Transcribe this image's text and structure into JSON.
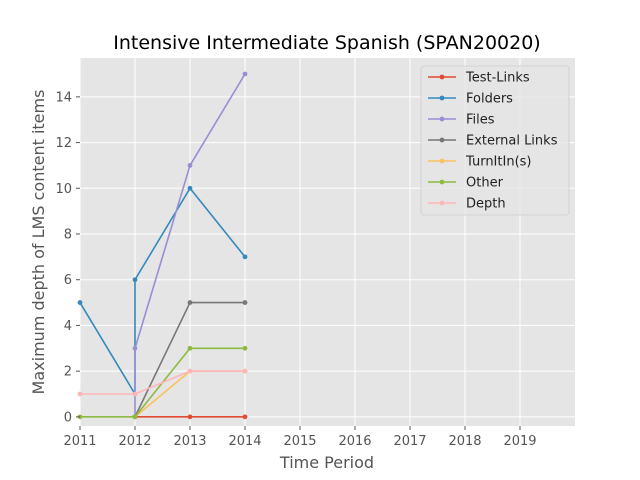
{
  "chart_data": {
    "type": "line",
    "title": "Intensive Intermediate Spanish (SPAN20020)",
    "xlabel": "Time Period",
    "ylabel": "Maximum depth of LMS content items",
    "xlim": [
      2011,
      2020
    ],
    "ylim": [
      -0.4,
      15.7
    ],
    "xticks": [
      "2011",
      "2012",
      "2013",
      "2014",
      "2015",
      "2016",
      "2017",
      "2018",
      "2019"
    ],
    "yticks": [
      "0",
      "2",
      "4",
      "6",
      "8",
      "10",
      "12",
      "14"
    ],
    "grid": true,
    "legend_position": "top-right",
    "series": [
      {
        "name": "Test-Links",
        "color": "#E24A33",
        "points": [
          [
            2012,
            0
          ],
          [
            2012,
            0
          ],
          [
            2013,
            0
          ],
          [
            2014,
            0
          ]
        ]
      },
      {
        "name": "Folders",
        "color": "#348ABD",
        "points": [
          [
            2011,
            5
          ],
          [
            2012,
            1
          ],
          [
            2012,
            6
          ],
          [
            2013,
            10
          ],
          [
            2014,
            7
          ]
        ]
      },
      {
        "name": "Files",
        "color": "#988ED5",
        "points": [
          [
            2012,
            0
          ],
          [
            2012,
            3
          ],
          [
            2013,
            11
          ],
          [
            2014,
            15
          ]
        ]
      },
      {
        "name": "External Links",
        "color": "#777777",
        "points": [
          [
            2012,
            0
          ],
          [
            2013,
            5
          ],
          [
            2014,
            5
          ]
        ]
      },
      {
        "name": "TurnItIn(s)",
        "color": "#FBC15E",
        "points": [
          [
            2012,
            0
          ],
          [
            2013,
            2
          ],
          [
            2014,
            2
          ]
        ]
      },
      {
        "name": "Other",
        "color": "#8EBA42",
        "points": [
          [
            2011,
            0
          ],
          [
            2012,
            0
          ],
          [
            2013,
            3
          ],
          [
            2014,
            3
          ]
        ]
      },
      {
        "name": "Depth",
        "color": "#FFB5B8",
        "points": [
          [
            2011,
            1
          ],
          [
            2012,
            1
          ],
          [
            2013,
            2
          ],
          [
            2014,
            2
          ]
        ]
      }
    ]
  }
}
